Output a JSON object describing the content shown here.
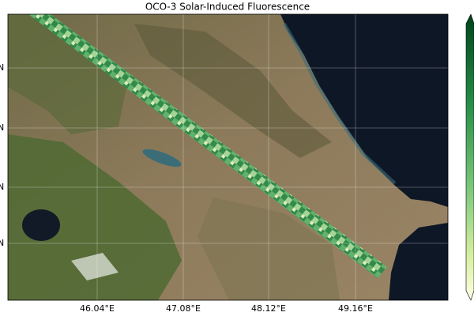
{
  "title": "OCO-3 Solar-Induced Fluorescence",
  "lon_ticks": [
    "46.04°E",
    "47.08°E",
    "48.12°E",
    "49.16°E"
  ],
  "lat_ticks": [
    "N",
    "N",
    "N",
    "N"
  ]
}
